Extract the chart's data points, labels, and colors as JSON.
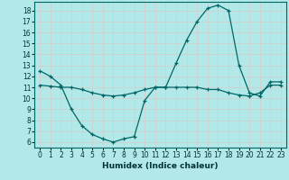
{
  "xlabel": "Humidex (Indice chaleur)",
  "bg_color": "#b2e8e8",
  "grid_color": "#d0d0d0",
  "line_color": "#006666",
  "xlim": [
    -0.5,
    23.5
  ],
  "ylim": [
    5.5,
    18.8
  ],
  "xticks": [
    0,
    1,
    2,
    3,
    4,
    5,
    6,
    7,
    8,
    9,
    10,
    11,
    12,
    13,
    14,
    15,
    16,
    17,
    18,
    19,
    20,
    21,
    22,
    23
  ],
  "yticks": [
    6,
    7,
    8,
    9,
    10,
    11,
    12,
    13,
    14,
    15,
    16,
    17,
    18
  ],
  "line1_x": [
    0,
    1,
    2,
    3,
    4,
    5,
    6,
    7,
    8,
    9,
    10,
    11,
    12,
    13,
    14,
    15,
    16,
    17,
    18,
    19,
    20,
    21,
    22,
    23
  ],
  "line1_y": [
    12.5,
    12.0,
    11.2,
    9.0,
    7.5,
    6.7,
    6.3,
    6.0,
    6.3,
    6.5,
    9.8,
    11.0,
    11.0,
    13.2,
    15.3,
    17.0,
    18.2,
    18.5,
    18.0,
    13.0,
    10.5,
    10.2,
    11.5,
    11.5
  ],
  "line2_x": [
    0,
    1,
    2,
    3,
    4,
    5,
    6,
    7,
    8,
    9,
    10,
    11,
    12,
    13,
    14,
    15,
    16,
    17,
    18,
    19,
    20,
    21,
    22,
    23
  ],
  "line2_y": [
    11.2,
    11.1,
    11.0,
    11.0,
    10.8,
    10.5,
    10.3,
    10.2,
    10.3,
    10.5,
    10.8,
    11.0,
    11.0,
    11.0,
    11.0,
    11.0,
    10.8,
    10.8,
    10.5,
    10.3,
    10.2,
    10.5,
    11.2,
    11.2
  ]
}
